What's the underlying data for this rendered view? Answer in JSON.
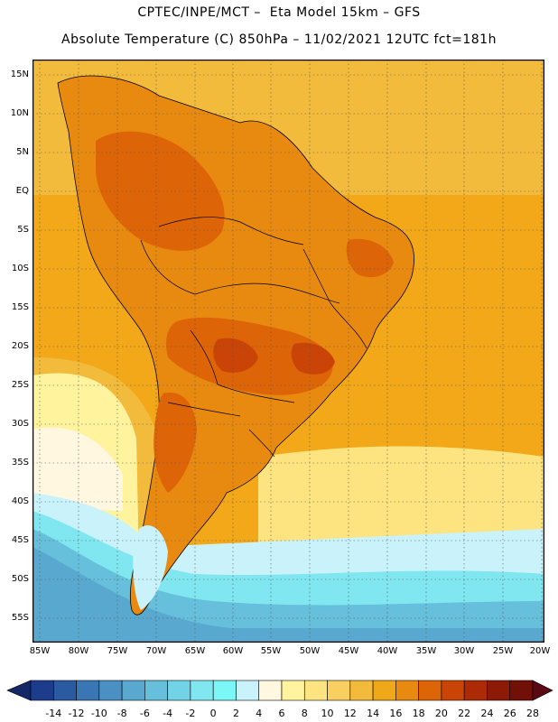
{
  "title_line1": "CPTEC/INPE/MCT –  Eta Model 15km – GFS",
  "title_line2": "Absolute Temperature (C) 850hPa – 11/02/2021 12UTC fct=181h",
  "lat_labels": [
    "15N",
    "10N",
    "5N",
    "EQ",
    "5S",
    "10S",
    "15S",
    "20S",
    "25S",
    "30S",
    "35S",
    "40S",
    "45S",
    "50S",
    "55S"
  ],
  "lon_labels": [
    "85W",
    "80W",
    "75W",
    "70W",
    "65W",
    "60W",
    "55W",
    "50W",
    "45W",
    "40W",
    "35W",
    "30W",
    "25W",
    "20W"
  ],
  "colorbar": {
    "labels": [
      "-14",
      "-12",
      "-10",
      "-8",
      "-6",
      "-4",
      "-2",
      "0",
      "2",
      "4",
      "6",
      "8",
      "10",
      "12",
      "14",
      "16",
      "18",
      "20",
      "22",
      "24",
      "26",
      "28"
    ],
    "colors": [
      "#1d3c8c",
      "#2a5aa0",
      "#3a76b4",
      "#4a90c2",
      "#58a8cf",
      "#66bfdb",
      "#73d3e6",
      "#80e6ef",
      "#7cf7f7",
      "#c9f2fb",
      "#fff7e0",
      "#fff39d",
      "#fde480",
      "#f9d060",
      "#f3bb3c",
      "#efa81a",
      "#e88a10",
      "#de6408",
      "#c94406",
      "#ad2a06",
      "#8c1a06",
      "#701006"
    ],
    "tip_low": "#142868",
    "tip_high": "#5a0814"
  },
  "map": {
    "ocean_warm": "#f2a818",
    "ocean_mid": "#f3bb3c",
    "land_hot": "#de6408",
    "land_warm": "#e88a10",
    "cool": "#fff39d",
    "cold": "#80e6ef",
    "coldest": "#4a90c2"
  }
}
